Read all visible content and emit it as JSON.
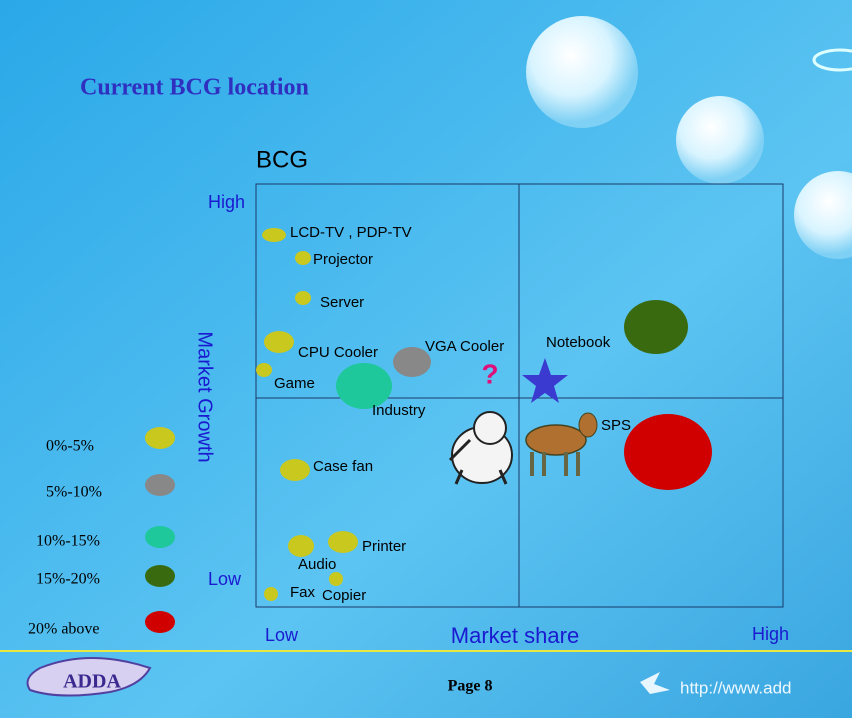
{
  "slide": {
    "title": "Current BCG location",
    "logo": "ADDA",
    "page": "Page 8",
    "url": "http://www.add"
  },
  "matrix": {
    "title": "BCG",
    "y_axis_label": "Market Growth",
    "y_high": "High",
    "y_low": "Low",
    "x_axis_label": "Market share",
    "x_low": "Low",
    "x_high": "High",
    "question": "?"
  },
  "legend": [
    "0%-5%",
    "5%-10%",
    "10%-15%",
    "15%-20%",
    "20% above"
  ],
  "items": [
    "LCD-TV , PDP-TV",
    "Projector",
    "Server",
    "CPU Cooler",
    "Game",
    "VGA Cooler",
    "Industry",
    "Notebook",
    "SPS",
    "Case fan",
    "Audio",
    "Printer",
    "Copier",
    "Fax"
  ]
}
